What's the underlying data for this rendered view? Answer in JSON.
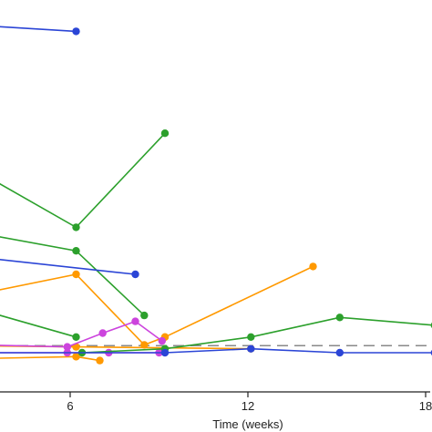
{
  "chart_data": {
    "type": "line",
    "title": "",
    "xlabel": "Time (weeks)",
    "ylabel": "",
    "x_ticks": [
      6,
      12,
      18
    ],
    "x_tick_labels": [
      "6",
      "12",
      "18"
    ],
    "xlim": [
      -0.3,
      18.6
    ],
    "ylim": [
      0,
      1
    ],
    "grid": false,
    "reference_line": {
      "y": 0.118,
      "style": "dashed",
      "color": "#888888"
    },
    "series": [
      {
        "color": "#2b45d6",
        "x": [
          -0.3,
          6.2
        ],
        "y": [
          0.95,
          0.92
        ]
      },
      {
        "color": "#2ca02c",
        "x": [
          -0.3,
          6.2,
          9.2
        ],
        "y": [
          0.7,
          0.42,
          0.66
        ]
      },
      {
        "color": "#2ca02c",
        "x": [
          -0.3,
          6.2,
          8.5
        ],
        "y": [
          0.45,
          0.36,
          0.195
        ]
      },
      {
        "color": "#2ca02c",
        "x": [
          -0.3,
          6.2
        ],
        "y": [
          0.28,
          0.14
        ]
      },
      {
        "color": "#2b45d6",
        "x": [
          -0.3,
          8.2
        ],
        "y": [
          0.37,
          0.3
        ]
      },
      {
        "color": "#ff9900",
        "x": [
          -0.3,
          6.2,
          8.5,
          9.2
        ],
        "y": [
          0.2,
          0.3,
          0.12,
          0.14
        ]
      },
      {
        "color": "#ff9900",
        "x": [
          9.2,
          14.2
        ],
        "y": [
          0.14,
          0.32
        ]
      },
      {
        "color": "#ff9900",
        "x": [
          -0.3,
          6.2,
          12.1
        ],
        "y": [
          0.12,
          0.115,
          0.11
        ]
      },
      {
        "color": "#ff9900",
        "x": [
          -0.3,
          6.2
        ],
        "y": [
          0.08,
          0.09
        ]
      },
      {
        "color": "#ff9900",
        "x": [
          6.2,
          7.0
        ],
        "y": [
          0.09,
          0.08
        ]
      },
      {
        "color": "#cc44dd",
        "x": [
          -0.3,
          0.2,
          5.9,
          7.1,
          8.2,
          9.1
        ],
        "y": [
          0.12,
          0.125,
          0.115,
          0.15,
          0.18,
          0.13
        ]
      },
      {
        "color": "#cc44dd",
        "x": [
          1.6,
          5.9,
          7.3,
          9.0
        ],
        "y": [
          0.1,
          0.1,
          0.1,
          0.1
        ]
      },
      {
        "color": "#2ca02c",
        "x": [
          6.4,
          9.2,
          12.1,
          15.1,
          18.3
        ],
        "y": [
          0.1,
          0.11,
          0.14,
          0.19,
          0.17
        ]
      },
      {
        "color": "#2b45d6",
        "x": [
          -0.3,
          9.2,
          12.1,
          15.1,
          18.3
        ],
        "y": [
          0.1,
          0.1,
          0.11,
          0.1,
          0.1
        ]
      }
    ]
  }
}
